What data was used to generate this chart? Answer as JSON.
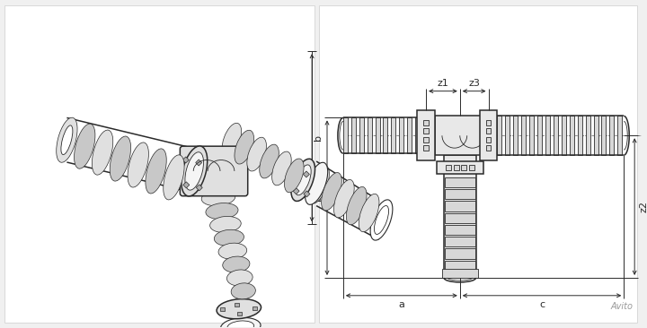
{
  "bg_color": "#f0f0f0",
  "panel_color": "#ffffff",
  "drawing_color": "#2a2a2a",
  "dim_color": "#2a2a2a",
  "part_fill": "#e8e8e8",
  "part_fill2": "#d8d8d8",
  "part_fill3": "#f2f2f2",
  "z1_label": "z1",
  "z3_label": "z3",
  "z2_label": "z2",
  "a_label": "a",
  "b_label": "b",
  "c_label": "c",
  "avito_text": "Avito"
}
